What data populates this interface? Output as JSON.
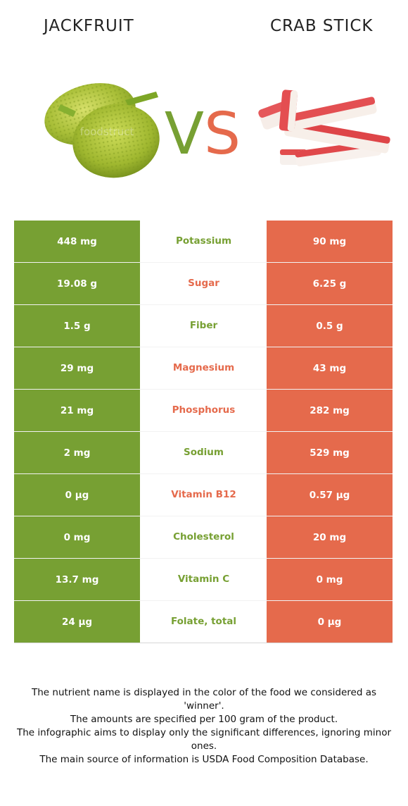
{
  "header": {
    "left_food": "JACKFRUIT",
    "vs_text": "VS",
    "right_food": "CRAB STICK",
    "watermark": "foodstruct"
  },
  "colors": {
    "left_winner": "#77a033",
    "right_winner": "#e56a4c"
  },
  "nutrients": [
    {
      "name": "Potassium",
      "left": "448 mg",
      "right": "90 mg",
      "winner": "left"
    },
    {
      "name": "Sugar",
      "left": "19.08 g",
      "right": "6.25 g",
      "winner": "right"
    },
    {
      "name": "Fiber",
      "left": "1.5 g",
      "right": "0.5 g",
      "winner": "left"
    },
    {
      "name": "Magnesium",
      "left": "29 mg",
      "right": "43 mg",
      "winner": "right"
    },
    {
      "name": "Phosphorus",
      "left": "21 mg",
      "right": "282 mg",
      "winner": "right"
    },
    {
      "name": "Sodium",
      "left": "2 mg",
      "right": "529 mg",
      "winner": "left"
    },
    {
      "name": "Vitamin B12",
      "left": "0 µg",
      "right": "0.57 µg",
      "winner": "right"
    },
    {
      "name": "Cholesterol",
      "left": "0 mg",
      "right": "20 mg",
      "winner": "left"
    },
    {
      "name": "Vitamin C",
      "left": "13.7 mg",
      "right": "0 mg",
      "winner": "left"
    },
    {
      "name": "Folate, total",
      "left": "24 µg",
      "right": "0 µg",
      "winner": "left"
    }
  ],
  "footnote": [
    "The nutrient name is displayed in the color of the food we considered as 'winner'.",
    "The amounts are specified per 100 gram of the product.",
    "The infographic aims to display only the significant differences, ignoring minor ones.",
    "The main source of information is USDA Food Composition Database."
  ]
}
